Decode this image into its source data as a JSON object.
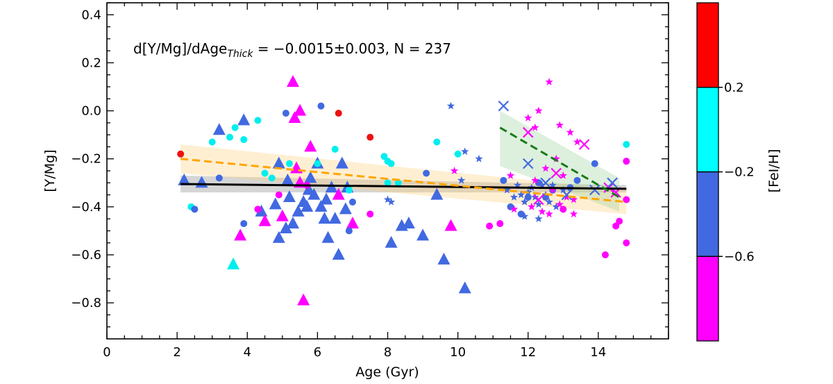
{
  "chart_data": {
    "type": "scatter",
    "annotation": {
      "prefix": "d[Y/Mg]/dAge",
      "subscript": "Thick",
      "suffix": " = −0.0015±0.003, N = 237"
    },
    "xlabel": "Age (Gyr)",
    "ylabel": "[Y/Mg]",
    "xlim": [
      0,
      16
    ],
    "ylim": [
      -0.95,
      0.45
    ],
    "x_ticks": [
      0,
      2,
      4,
      6,
      8,
      10,
      12,
      14
    ],
    "y_ticks": [
      -0.8,
      -0.6,
      -0.4,
      -0.2,
      0.0,
      0.2,
      0.4
    ],
    "x_tick_labels": [
      "0",
      "2",
      "4",
      "6",
      "8",
      "10",
      "12",
      "14"
    ],
    "y_tick_labels": [
      "−0.8",
      "−0.6",
      "−0.4",
      "−0.2",
      "0.0",
      "0.2",
      "0.4"
    ],
    "colorbar": {
      "label": "[FeI/H]",
      "tick_labels": [
        "0.2",
        "−0.2",
        "−0.6"
      ],
      "tick_values": [
        0.2,
        -0.2,
        -0.6
      ],
      "range": [
        -1.0,
        0.6
      ],
      "bands": [
        {
          "from": 0.2,
          "to": 0.6,
          "color": "#ff0000"
        },
        {
          "from": -0.2,
          "to": 0.2,
          "color": "#00ffff"
        },
        {
          "from": -0.6,
          "to": -0.2,
          "color": "#4169e1"
        },
        {
          "from": -1.0,
          "to": -0.6,
          "color": "#ff00ff"
        }
      ]
    },
    "colors": {
      "red": "#ee1111",
      "cyan": "#00eeee",
      "blue": "#4169e1",
      "magenta": "#ff00ff"
    },
    "fits": [
      {
        "name": "thick-disk-fit",
        "color": "#000000",
        "dash": "solid",
        "x": [
          2.1,
          14.8
        ],
        "y": [
          -0.305,
          -0.325
        ],
        "band_color": "#888888",
        "band_upper": [
          -0.27,
          -0.31
        ],
        "band_lower": [
          -0.34,
          -0.34
        ]
      },
      {
        "name": "orange-fit",
        "color": "#ffa500",
        "dash": "dashed",
        "x": [
          2.1,
          14.8
        ],
        "y": [
          -0.2,
          -0.38
        ],
        "band_color": "#ffd27f",
        "band_upper": [
          -0.14,
          -0.33
        ],
        "band_lower": [
          -0.26,
          -0.43
        ]
      },
      {
        "name": "green-fit",
        "color": "#1a7a1a",
        "dash": "dashed",
        "x": [
          11.2,
          14.6
        ],
        "y": [
          -0.07,
          -0.36
        ],
        "band_color": "#9fd49f",
        "band_upper": [
          0.0,
          -0.28
        ],
        "band_lower": [
          -0.23,
          -0.42
        ]
      }
    ],
    "series": [
      {
        "name": "triangles",
        "marker": "triangle",
        "points": [
          [
            2.2,
            -0.29,
            "blue"
          ],
          [
            2.7,
            -0.3,
            "blue"
          ],
          [
            3.2,
            -0.08,
            "blue"
          ],
          [
            3.9,
            -0.04,
            "blue"
          ],
          [
            3.6,
            -0.64,
            "cyan"
          ],
          [
            3.8,
            -0.52,
            "magenta"
          ],
          [
            4.4,
            -0.42,
            "blue"
          ],
          [
            4.5,
            -0.46,
            "magenta"
          ],
          [
            4.8,
            -0.39,
            "blue"
          ],
          [
            4.9,
            -0.53,
            "blue"
          ],
          [
            5.0,
            -0.44,
            "magenta"
          ],
          [
            5.1,
            -0.49,
            "blue"
          ],
          [
            5.2,
            -0.36,
            "blue"
          ],
          [
            5.3,
            0.12,
            "magenta"
          ],
          [
            5.35,
            -0.03,
            "magenta"
          ],
          [
            5.5,
            0.0,
            "magenta"
          ],
          [
            5.4,
            -0.24,
            "magenta"
          ],
          [
            5.5,
            -0.3,
            "magenta"
          ],
          [
            5.6,
            -0.79,
            "magenta"
          ],
          [
            5.6,
            -0.38,
            "blue"
          ],
          [
            5.7,
            -0.4,
            "blue"
          ],
          [
            5.8,
            -0.15,
            "magenta"
          ],
          [
            5.8,
            -0.28,
            "blue"
          ],
          [
            5.9,
            -0.35,
            "blue"
          ],
          [
            6.0,
            -0.22,
            "blue"
          ],
          [
            6.1,
            -0.4,
            "blue"
          ],
          [
            6.2,
            -0.45,
            "blue"
          ],
          [
            6.3,
            -0.53,
            "blue"
          ],
          [
            6.4,
            -0.32,
            "blue"
          ],
          [
            6.5,
            -0.45,
            "blue"
          ],
          [
            6.6,
            -0.35,
            "magenta"
          ],
          [
            6.6,
            -0.6,
            "blue"
          ],
          [
            6.7,
            -0.22,
            "blue"
          ],
          [
            6.8,
            -0.41,
            "blue"
          ],
          [
            7.0,
            -0.47,
            "magenta"
          ],
          [
            5.15,
            -0.29,
            "blue"
          ],
          [
            5.45,
            -0.42,
            "blue"
          ],
          [
            5.75,
            -0.33,
            "blue"
          ],
          [
            6.25,
            -0.37,
            "blue"
          ],
          [
            6.85,
            -0.32,
            "blue"
          ],
          [
            8.1,
            -0.55,
            "blue"
          ],
          [
            8.4,
            -0.48,
            "blue"
          ],
          [
            8.6,
            -0.47,
            "blue"
          ],
          [
            9.0,
            -0.52,
            "blue"
          ],
          [
            9.4,
            -0.35,
            "blue"
          ],
          [
            9.6,
            -0.62,
            "blue"
          ],
          [
            9.8,
            -0.48,
            "magenta"
          ],
          [
            10.2,
            -0.74,
            "blue"
          ],
          [
            4.9,
            -0.22,
            "blue"
          ],
          [
            5.3,
            -0.47,
            "blue"
          ]
        ]
      },
      {
        "name": "circles",
        "marker": "circle",
        "points": [
          [
            2.1,
            -0.18,
            "red"
          ],
          [
            2.4,
            -0.4,
            "cyan"
          ],
          [
            2.5,
            -0.41,
            "blue"
          ],
          [
            3.0,
            -0.13,
            "cyan"
          ],
          [
            3.2,
            -0.28,
            "blue"
          ],
          [
            3.5,
            -0.11,
            "cyan"
          ],
          [
            3.65,
            -0.07,
            "cyan"
          ],
          [
            3.9,
            -0.12,
            "cyan"
          ],
          [
            3.9,
            -0.47,
            "blue"
          ],
          [
            4.3,
            -0.04,
            "cyan"
          ],
          [
            4.5,
            -0.26,
            "cyan"
          ],
          [
            4.7,
            -0.28,
            "cyan"
          ],
          [
            5.1,
            -0.01,
            "blue"
          ],
          [
            5.2,
            -0.22,
            "cyan"
          ],
          [
            6.1,
            0.02,
            "blue"
          ],
          [
            6.6,
            -0.01,
            "red"
          ],
          [
            6.5,
            -0.16,
            "cyan"
          ],
          [
            6.9,
            -0.33,
            "cyan"
          ],
          [
            7.0,
            -0.38,
            "blue"
          ],
          [
            7.5,
            -0.11,
            "red"
          ],
          [
            6.9,
            -0.5,
            "blue"
          ],
          [
            7.5,
            -0.43,
            "magenta"
          ],
          [
            7.9,
            -0.19,
            "cyan"
          ],
          [
            8.0,
            -0.21,
            "cyan"
          ],
          [
            8.1,
            -0.22,
            "cyan"
          ],
          [
            8.3,
            -0.3,
            "cyan"
          ],
          [
            9.1,
            -0.26,
            "blue"
          ],
          [
            9.4,
            -0.13,
            "cyan"
          ],
          [
            10.0,
            -0.18,
            "cyan"
          ],
          [
            10.9,
            -0.48,
            "magenta"
          ],
          [
            11.2,
            -0.47,
            "magenta"
          ],
          [
            11.5,
            -0.4,
            "blue"
          ],
          [
            11.8,
            -0.43,
            "blue"
          ],
          [
            12.0,
            -0.36,
            "blue"
          ],
          [
            12.3,
            -0.3,
            "blue"
          ],
          [
            13.2,
            -0.32,
            "blue"
          ],
          [
            13.4,
            -0.29,
            "blue"
          ],
          [
            13.9,
            -0.22,
            "blue"
          ],
          [
            14.2,
            -0.6,
            "magenta"
          ],
          [
            14.5,
            -0.48,
            "magenta"
          ],
          [
            14.6,
            -0.46,
            "magenta"
          ],
          [
            14.8,
            -0.55,
            "magenta"
          ],
          [
            14.8,
            -0.37,
            "magenta"
          ],
          [
            14.8,
            -0.21,
            "magenta"
          ],
          [
            14.8,
            -0.14,
            "cyan"
          ],
          [
            11.3,
            -0.29,
            "blue"
          ],
          [
            12.7,
            -0.33,
            "blue"
          ],
          [
            13.0,
            -0.41,
            "magenta"
          ],
          [
            12.5,
            -0.36,
            "blue"
          ],
          [
            6.0,
            -0.22,
            "cyan"
          ],
          [
            4.9,
            -0.35,
            "magenta"
          ],
          [
            5.7,
            -0.31,
            "magenta"
          ],
          [
            4.3,
            -0.41,
            "magenta"
          ],
          [
            8.0,
            -0.3,
            "cyan"
          ]
        ]
      },
      {
        "name": "stars",
        "marker": "star",
        "points": [
          [
            9.8,
            0.02,
            "blue"
          ],
          [
            10.2,
            -0.17,
            "blue"
          ],
          [
            10.6,
            -0.2,
            "blue"
          ],
          [
            9.9,
            -0.25,
            "magenta"
          ],
          [
            10.1,
            -0.29,
            "blue"
          ],
          [
            8.0,
            -0.37,
            "blue"
          ],
          [
            8.1,
            -0.38,
            "blue"
          ],
          [
            11.4,
            -0.33,
            "blue"
          ],
          [
            11.6,
            -0.36,
            "blue"
          ],
          [
            11.8,
            -0.35,
            "blue"
          ],
          [
            11.9,
            -0.38,
            "blue"
          ],
          [
            12.0,
            -0.34,
            "blue"
          ],
          [
            12.2,
            -0.36,
            "blue"
          ],
          [
            12.3,
            -0.39,
            "blue"
          ],
          [
            12.5,
            -0.35,
            "blue"
          ],
          [
            12.6,
            -0.38,
            "blue"
          ],
          [
            12.8,
            -0.4,
            "blue"
          ],
          [
            11.7,
            -0.31,
            "blue"
          ],
          [
            12.1,
            -0.32,
            "blue"
          ],
          [
            12.4,
            -0.31,
            "blue"
          ],
          [
            12.7,
            -0.31,
            "blue"
          ],
          [
            13.0,
            -0.33,
            "blue"
          ],
          [
            12.0,
            -0.03,
            "magenta"
          ],
          [
            12.3,
            0.0,
            "magenta"
          ],
          [
            12.6,
            0.12,
            "magenta"
          ],
          [
            12.2,
            -0.07,
            "magenta"
          ],
          [
            12.9,
            -0.06,
            "magenta"
          ],
          [
            13.2,
            -0.09,
            "magenta"
          ],
          [
            13.4,
            -0.13,
            "magenta"
          ],
          [
            12.8,
            -0.2,
            "magenta"
          ],
          [
            12.5,
            -0.24,
            "magenta"
          ],
          [
            13.0,
            -0.27,
            "magenta"
          ],
          [
            12.2,
            -0.29,
            "magenta"
          ],
          [
            12.7,
            -0.33,
            "magenta"
          ],
          [
            13.1,
            -0.36,
            "magenta"
          ],
          [
            12.9,
            -0.39,
            "magenta"
          ],
          [
            12.4,
            -0.42,
            "magenta"
          ],
          [
            12.1,
            -0.4,
            "magenta"
          ],
          [
            11.5,
            -0.27,
            "magenta"
          ],
          [
            13.3,
            -0.37,
            "magenta"
          ],
          [
            11.9,
            -0.44,
            "blue"
          ],
          [
            12.3,
            -0.45,
            "blue"
          ],
          [
            12.6,
            -0.43,
            "magenta"
          ],
          [
            13.3,
            -0.43,
            "magenta"
          ],
          [
            11.6,
            -0.41,
            "magenta"
          ]
        ]
      },
      {
        "name": "crosses",
        "marker": "x",
        "points": [
          [
            11.3,
            0.02,
            "blue"
          ],
          [
            12.0,
            -0.09,
            "magenta"
          ],
          [
            12.0,
            -0.22,
            "blue"
          ],
          [
            12.5,
            -0.3,
            "blue"
          ],
          [
            12.8,
            -0.26,
            "magenta"
          ],
          [
            13.1,
            -0.35,
            "blue"
          ],
          [
            13.6,
            -0.14,
            "magenta"
          ],
          [
            13.9,
            -0.33,
            "blue"
          ],
          [
            14.3,
            -0.32,
            "magenta"
          ],
          [
            14.4,
            -0.3,
            "blue"
          ],
          [
            14.5,
            -0.34,
            "magenta"
          ],
          [
            12.3,
            -0.37,
            "magenta"
          ]
        ]
      }
    ]
  }
}
